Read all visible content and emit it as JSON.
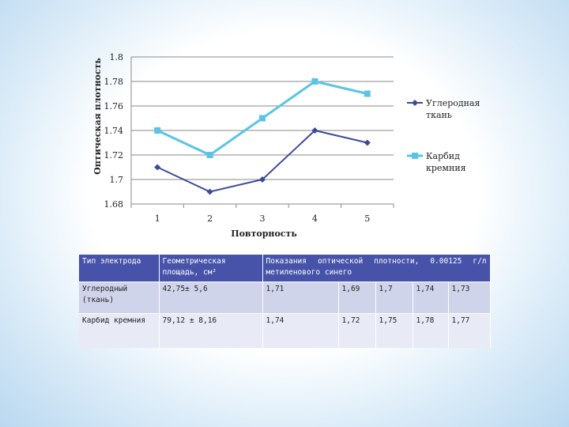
{
  "chart_data": {
    "type": "line",
    "title": "",
    "xlabel": "Повторность",
    "ylabel": "Оптическая плотность",
    "categories": [
      "1",
      "2",
      "3",
      "4",
      "5"
    ],
    "ylim": [
      1.68,
      1.8
    ],
    "yticks": [
      "1.68",
      "1.7",
      "1.72",
      "1.74",
      "1.76",
      "1.78",
      "1.8"
    ],
    "grid": true,
    "legend_position": "right",
    "series": [
      {
        "name": "Углеродная ткань",
        "values": [
          1.71,
          1.69,
          1.7,
          1.74,
          1.73
        ],
        "color": "#3a4a9a",
        "marker": "diamond"
      },
      {
        "name": "Карбид кремния",
        "values": [
          1.74,
          1.72,
          1.75,
          1.78,
          1.77
        ],
        "color": "#5bc4e6",
        "marker": "square"
      }
    ],
    "legend_lines": [
      [
        "Углеродная",
        "ткань"
      ],
      [
        "Карбид",
        "кремния"
      ]
    ]
  },
  "table": {
    "header": {
      "col1": "Тип электрода",
      "col2": "Геометрическая площадь, см²",
      "col3": "Показания оптической плотности, 0.00125 г/л метиленового синего"
    },
    "rows": [
      {
        "type": "Углеродный (ткань)",
        "area": "42,75± 5,6",
        "values": [
          "1,71",
          "1,69",
          "1,7",
          "1,74",
          "1,73"
        ]
      },
      {
        "type": "Карбид кремния",
        "area": "79,12 ± 8,16",
        "values": [
          "1,74",
          "1,72",
          "1,75",
          "1,78",
          "1,77"
        ]
      }
    ]
  }
}
